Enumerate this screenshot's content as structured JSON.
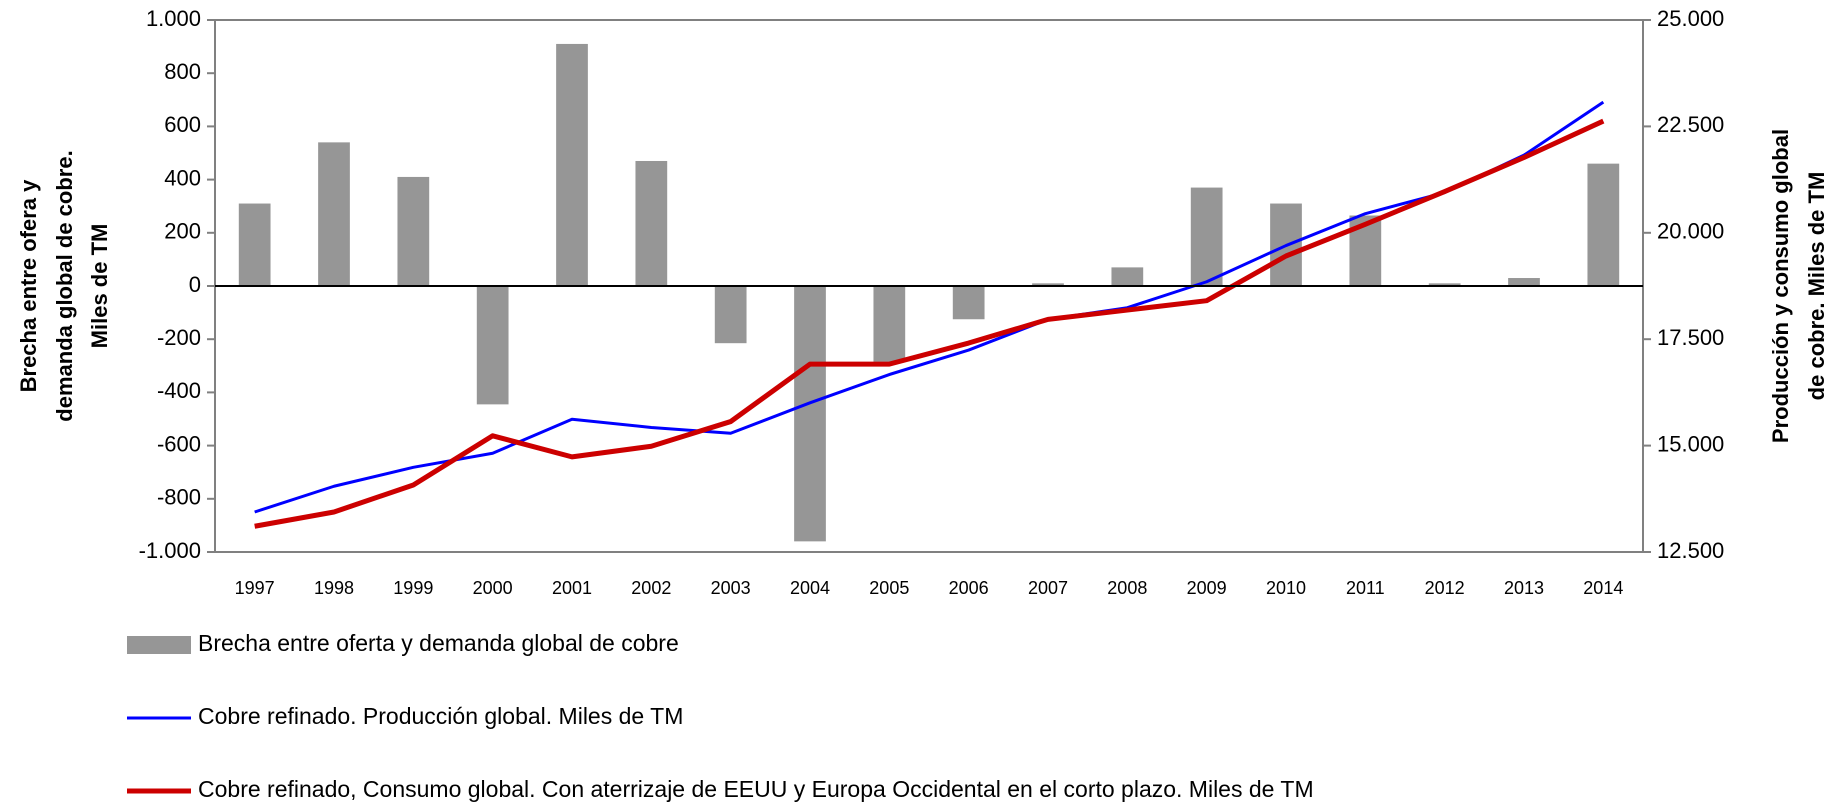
{
  "chart_data": {
    "type": "combo",
    "categories": [
      "1997",
      "1998",
      "1999",
      "2000",
      "2001",
      "2002",
      "2003",
      "2004",
      "2005",
      "2006",
      "2007",
      "2008",
      "2009",
      "2010",
      "2011",
      "2012",
      "2013",
      "2014"
    ],
    "series": [
      {
        "name": "Brecha entre oferta y demanda global de cobre",
        "type": "bar",
        "color": "#969696",
        "values": [
          310,
          540,
          410,
          -445,
          910,
          470,
          -215,
          -960,
          -285,
          -125,
          10,
          70,
          370,
          310,
          265,
          10,
          30,
          460
        ]
      },
      {
        "name": "Cobre refinado. Producción global. Miles de TM",
        "type": "line",
        "axis": "y2",
        "color": "#0000ff",
        "width": 3,
        "values": [
          13440,
          14045,
          14490,
          14820,
          15620,
          15425,
          15290,
          16005,
          16670,
          17245,
          17965,
          18240,
          18850,
          19700,
          20450,
          20945,
          21825,
          23070
        ]
      },
      {
        "name": "Cobre refinado, Consumo global. Con aterrizaje de EEUU y Europa Occidental en el corto plazo. Miles de TM",
        "type": "line",
        "axis": "y2",
        "color": "#cc0000",
        "width": 5,
        "values": [
          13105,
          13440,
          14075,
          15230,
          14735,
          14985,
          15565,
          16915,
          16915,
          17410,
          17965,
          18185,
          18405,
          19455,
          20200,
          20970,
          21770,
          22625
        ]
      }
    ],
    "ylabel": [
      "Brecha entre ofera y",
      "demanda global de cobre.",
      "Miles de TM"
    ],
    "y2label": [
      "Producción y consumo global",
      "de cobre. Miles de TM"
    ],
    "ylim": [
      -1000,
      1000
    ],
    "yticks": [
      {
        "value": -1000,
        "label": "-1.000"
      },
      -800,
      -600,
      -400,
      -200,
      0,
      200,
      400,
      600,
      800,
      {
        "value": 1000,
        "label": "1.000"
      }
    ],
    "y2lim": [
      12500,
      25000
    ],
    "y2ticks": [
      {
        "value": 12500,
        "label": "12.500"
      },
      {
        "value": 15000,
        "label": "15.000"
      },
      {
        "value": 17500,
        "label": "17.500"
      },
      {
        "value": 20000,
        "label": "20.000"
      },
      {
        "value": 22500,
        "label": "22.500"
      },
      {
        "value": 25000,
        "label": "25.000"
      }
    ],
    "grid": false,
    "legend": "bottom"
  }
}
